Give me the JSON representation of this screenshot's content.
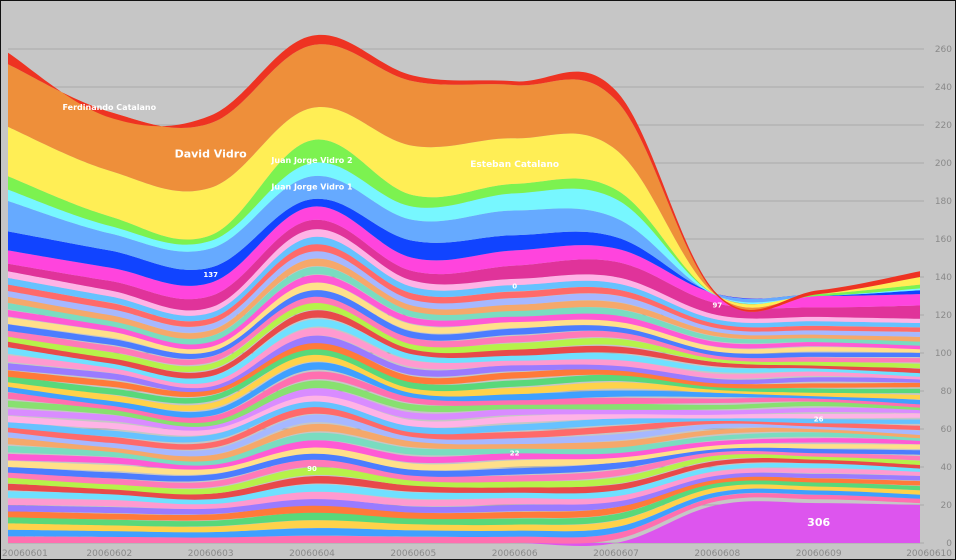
{
  "chart_data": {
    "type": "area",
    "stacked": true,
    "x": [
      "20060601",
      "20060602",
      "20060603",
      "20060604",
      "20060605",
      "20060606",
      "20060607",
      "20060608",
      "20060609",
      "20060610"
    ],
    "ylim": [
      0,
      270
    ],
    "yticks": [
      0,
      20,
      40,
      60,
      80,
      100,
      120,
      140,
      160,
      180,
      200,
      220,
      240,
      260
    ],
    "ytick_labels": [
      "0",
      "20",
      "40",
      "60",
      "80",
      "100",
      "120",
      "140",
      "160",
      "180",
      "200",
      "220",
      "240",
      "260"
    ],
    "grid": true,
    "colors": {
      "background": "#c6c6c6",
      "grid": "#a9a9a9",
      "palette": [
        "#ff4dff",
        "#3366ff",
        "#ff3333",
        "#ffee44",
        "#44cc66",
        "#ff8844",
        "#66ddff",
        "#aa66ff",
        "#ff88aa",
        "#88ff66",
        "#5599ff",
        "#ffaa55",
        "#dd44aa",
        "#77ffdd",
        "#ff6666",
        "#99aaff",
        "#ffcc88",
        "#cc88ff",
        "#66bbff",
        "#ff99cc"
      ]
    },
    "series_top": [
      {
        "name": "Ferdinando Catalano",
        "values": [
          258,
          224,
          225,
          267,
          246,
          243,
          238,
          131,
          133,
          143
        ]
      },
      {
        "name": "",
        "values": [
          252,
          227,
          221,
          262,
          243,
          241,
          233,
          130,
          131,
          140
        ]
      },
      {
        "name": "David Vidro",
        "values": [
          219,
          196,
          187,
          229,
          209,
          213,
          207,
          130,
          131,
          140
        ]
      },
      {
        "name": "Juan Jorge Vidro 1",
        "values": [
          193,
          172,
          162,
          212,
          183,
          189,
          186,
          130,
          131,
          136
        ]
      },
      {
        "name": "Juan Jorge Vidro 2",
        "values": [
          186,
          167,
          159,
          200,
          177,
          184,
          181,
          130,
          130,
          134
        ]
      },
      {
        "name": "Esteban Catalano",
        "values": [
          180,
          163,
          155,
          193,
          170,
          175,
          171,
          130,
          130,
          133
        ]
      },
      {
        "name": "",
        "values": [
          164,
          154,
          145,
          181,
          159,
          162,
          161,
          131,
          131,
          133
        ]
      },
      {
        "name": "",
        "values": [
          154,
          145,
          137,
          177,
          150,
          154,
          155,
          131,
          130,
          131
        ]
      },
      {
        "name": "",
        "values": [
          147,
          138,
          130,
          170,
          143,
          146,
          148,
          126,
          124,
          125
        ]
      }
    ],
    "lower_band_base": [
      143,
      133,
      124,
      165,
      138,
      139,
      140,
      120,
      119,
      118
    ],
    "lower_band_count": 42,
    "pink_bottom": [
      0,
      0,
      0,
      0,
      0,
      0,
      0,
      20,
      21,
      20
    ],
    "lower_band_floor": [
      0,
      0,
      0,
      0,
      0,
      0,
      2,
      22,
      23,
      21
    ],
    "label_points": [
      {
        "text": "Ferdinando Catalano",
        "x": "20060602",
        "y": 228,
        "size": 8
      },
      {
        "text": "David Vidro",
        "x": "20060603",
        "y": 203,
        "size": 11
      },
      {
        "text": "Juan Jorge Vidro 2",
        "x": "20060604",
        "y": 200,
        "size": 8
      },
      {
        "text": "Juan Jorge Vidro 1",
        "x": "20060604",
        "y": 186,
        "size": 8
      },
      {
        "text": "Esteban Catalano",
        "x": "20060606",
        "y": 198,
        "size": 9
      },
      {
        "text": "137",
        "x": "20060603",
        "y": 140,
        "size": 7
      },
      {
        "text": "0",
        "x": "20060606",
        "y": 134,
        "size": 7
      },
      {
        "text": "97",
        "x": "20060608",
        "y": 124,
        "size": 7
      },
      {
        "text": "26",
        "x": "20060609",
        "y": 64,
        "size": 7
      },
      {
        "text": "22",
        "x": "20060606",
        "y": 46,
        "size": 7
      },
      {
        "text": "90",
        "x": "20060604",
        "y": 38,
        "size": 7
      },
      {
        "text": "306",
        "x": "20060609",
        "y": 9,
        "size": 11
      }
    ]
  }
}
